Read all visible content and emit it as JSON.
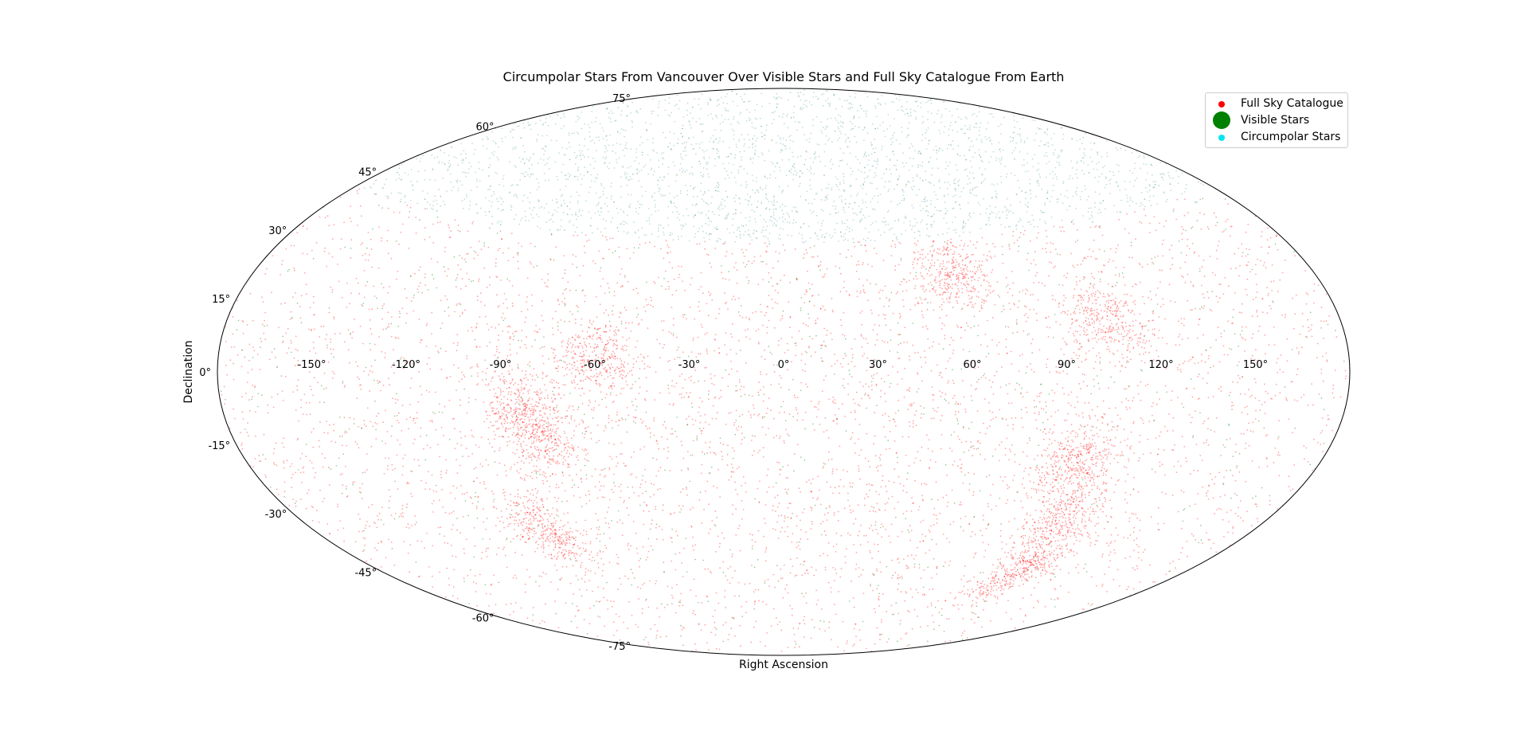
{
  "chart_data": {
    "type": "scatter",
    "projection": "aitoff",
    "title": "Circumpolar Stars From Vancouver Over Visible Stars and Full Sky Catalogue From Earth",
    "xlabel": "Right Ascension",
    "ylabel": "Declination",
    "xlim": [
      -180,
      180
    ],
    "ylim": [
      -90,
      90
    ],
    "x_ticks": [
      -150,
      -120,
      -90,
      -60,
      -30,
      0,
      30,
      60,
      90,
      120,
      150
    ],
    "x_tick_labels": [
      "-150°",
      "-120°",
      "-90°",
      "-60°",
      "-30°",
      "0°",
      "30°",
      "60°",
      "90°",
      "120°",
      "150°"
    ],
    "y_ticks": [
      75,
      60,
      45,
      30,
      15,
      0,
      -15,
      -30,
      -45,
      -60,
      -75
    ],
    "y_tick_labels": [
      "75°",
      "60°",
      "45°",
      "30°",
      "15°",
      "0°",
      "-15°",
      "-30°",
      "-45°",
      "-60°",
      "-75°"
    ],
    "grid": false,
    "legend_position": "top-right",
    "series": [
      {
        "name": "Full Sky Catalogue",
        "color": "#ff0000",
        "dec_range": [
          -90,
          90
        ],
        "approx_points": 9000,
        "dense_regions_ra_dec": [
          [
            -100,
            -45
          ],
          [
            -80,
            -20
          ],
          [
            -85,
            -10
          ],
          [
            -60,
            5
          ],
          [
            100,
            -25
          ],
          [
            110,
            -40
          ],
          [
            120,
            -55
          ],
          [
            105,
            15
          ],
          [
            60,
            30
          ]
        ]
      },
      {
        "name": "Visible Stars",
        "color": "#008000",
        "dec_range": [
          -90,
          90
        ],
        "approx_points": 900
      },
      {
        "name": "Circumpolar Stars",
        "color": "#00e5ee",
        "dec_range": [
          41,
          90
        ],
        "approx_points": 2500
      }
    ]
  }
}
